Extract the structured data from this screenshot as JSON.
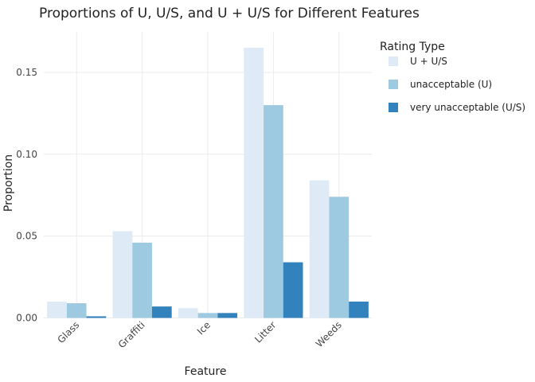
{
  "chart_data": {
    "type": "bar",
    "title": "Proportions of U, U/S, and U + U/S for Different Features",
    "xlabel": "Feature",
    "ylabel": "Proportion",
    "categories": [
      "Glass",
      "Graffiti",
      "Ice",
      "Litter",
      "Weeds"
    ],
    "ylim": [
      0,
      0.17
    ],
    "yticks": [
      0.0,
      0.05,
      0.1,
      0.15
    ],
    "ytick_labels": [
      "0.00",
      "0.05",
      "0.10",
      "0.15"
    ],
    "grid": true,
    "legend": {
      "title": "Rating Type",
      "placement": "right"
    },
    "series": [
      {
        "name": "U + U/S",
        "color": "#deebf7",
        "values": [
          0.01,
          0.053,
          0.006,
          0.165,
          0.084
        ]
      },
      {
        "name": "unacceptable (U)",
        "color": "#9ecae1",
        "values": [
          0.009,
          0.046,
          0.003,
          0.13,
          0.074
        ]
      },
      {
        "name": "very unacceptable (U/S)",
        "color": "#3182bd",
        "values": [
          0.001,
          0.007,
          0.003,
          0.034,
          0.01
        ]
      }
    ]
  }
}
